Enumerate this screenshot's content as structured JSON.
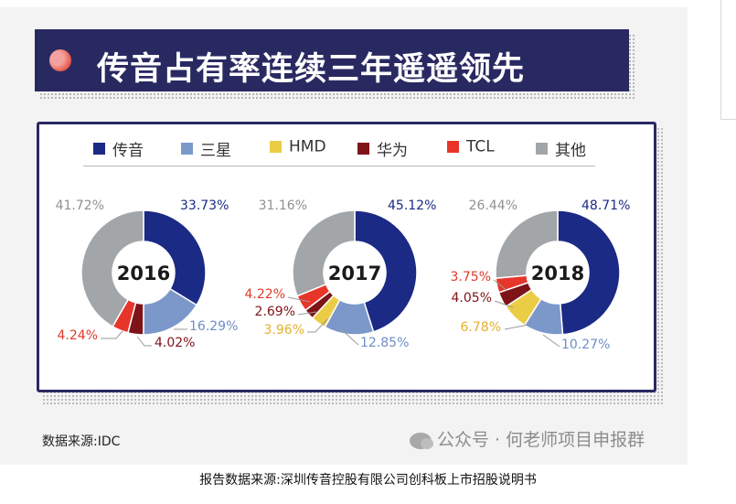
{
  "title": "传音占有率连续三年遥遥领先",
  "legend": [
    {
      "label": "传音",
      "color": "#1a2a85"
    },
    {
      "label": "三星",
      "color": "#7c98cb"
    },
    {
      "label": "HMD",
      "color": "#ebcd45"
    },
    {
      "label": "华为",
      "color": "#7e1418"
    },
    {
      "label": "TCL",
      "color": "#e8352a"
    },
    {
      "label": "其他",
      "color": "#a3a6a8"
    }
  ],
  "chart_data": [
    {
      "type": "pie",
      "center_label": "2016",
      "slices": [
        {
          "name": "传音",
          "value": 33.73,
          "label": "33.73%"
        },
        {
          "name": "三星",
          "value": 16.29,
          "label": "16.29%"
        },
        {
          "name": "HMD",
          "value": 0,
          "label": ""
        },
        {
          "name": "华为",
          "value": 4.02,
          "label": "4.02%"
        },
        {
          "name": "TCL",
          "value": 4.24,
          "label": "4.24%"
        },
        {
          "name": "其他",
          "value": 41.72,
          "label": "41.72%"
        }
      ]
    },
    {
      "type": "pie",
      "center_label": "2017",
      "slices": [
        {
          "name": "传音",
          "value": 45.12,
          "label": "45.12%"
        },
        {
          "name": "三星",
          "value": 12.85,
          "label": "12.85%"
        },
        {
          "name": "HMD",
          "value": 3.96,
          "label": "3.96%"
        },
        {
          "name": "华为",
          "value": 2.69,
          "label": "2.69%"
        },
        {
          "name": "TCL",
          "value": 4.22,
          "label": "4.22%"
        },
        {
          "name": "其他",
          "value": 31.16,
          "label": "31.16%"
        }
      ]
    },
    {
      "type": "pie",
      "center_label": "2018",
      "slices": [
        {
          "name": "传音",
          "value": 48.71,
          "label": "48.71%"
        },
        {
          "name": "三星",
          "value": 10.27,
          "label": "10.27%"
        },
        {
          "name": "HMD",
          "value": 6.78,
          "label": "6.78%"
        },
        {
          "name": "华为",
          "value": 4.05,
          "label": "4.05%"
        },
        {
          "name": "TCL",
          "value": 3.75,
          "label": "3.75%"
        },
        {
          "name": "其他",
          "value": 26.44,
          "label": "26.44%"
        }
      ]
    }
  ],
  "source": "数据来源:IDC",
  "watermark": "公众号 · 何老师项目申报群",
  "caption": "报告数据来源:深圳传音控股有限公司创科板上市招股说明书"
}
